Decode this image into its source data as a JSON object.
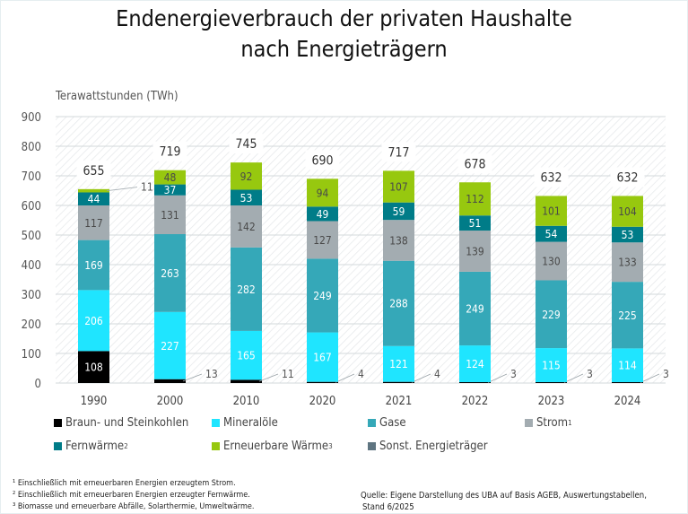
{
  "chart_data": {
    "type": "bar",
    "stacked": true,
    "title": "Endenergieverbrauch der privaten Haushalte nach Energieträgern",
    "title_lines": [
      "Endenergieverbrauch der privaten Haushalte",
      "nach Energieträgern"
    ],
    "ylabel": "Terawattstunden (TWh)",
    "xlabel": "",
    "ylim": [
      0,
      900
    ],
    "yticks": [
      0,
      100,
      200,
      300,
      400,
      500,
      600,
      700,
      800,
      900
    ],
    "grid": true,
    "legend_position": "bottom",
    "categories": [
      "1990",
      "2000",
      "2010",
      "2020",
      "2021",
      "2022",
      "2023",
      "2024"
    ],
    "totals": [
      655,
      719,
      745,
      690,
      717,
      678,
      632,
      632
    ],
    "series": [
      {
        "name": "Braun- und Steinkohlen",
        "sup": "",
        "color": "#000000",
        "label_color": "#ffffff",
        "values": [
          108,
          13,
          11,
          4,
          4,
          3,
          3,
          3
        ]
      },
      {
        "name": "Mineralöle",
        "sup": "",
        "color": "#1fe5ff",
        "label_color": "#ffffff",
        "values": [
          206,
          227,
          165,
          167,
          121,
          124,
          115,
          114
        ]
      },
      {
        "name": "Gase",
        "sup": "",
        "color": "#35a8b8",
        "label_color": "#ffffff",
        "values": [
          169,
          263,
          282,
          249,
          288,
          249,
          229,
          225
        ]
      },
      {
        "name": "Strom",
        "sup": "1",
        "color": "#a3acb1",
        "label_color": "#4a4a4a",
        "values": [
          117,
          131,
          142,
          127,
          138,
          139,
          130,
          133
        ]
      },
      {
        "name": "Fernwärme",
        "sup": "2",
        "color": "#007c88",
        "label_color": "#ffffff",
        "values": [
          44,
          37,
          53,
          49,
          59,
          51,
          54,
          53
        ]
      },
      {
        "name": "Erneuerbare Wärme",
        "sup": "3",
        "color": "#97c80f",
        "label_color": "#4a4a4a",
        "values": [
          11,
          48,
          92,
          94,
          107,
          112,
          101,
          104
        ]
      },
      {
        "name": "Sonst. Energieträger",
        "sup": "",
        "color": "#5f7581",
        "label_color": "#ffffff",
        "values": [
          0,
          0,
          0,
          0,
          0,
          0,
          0,
          0
        ]
      }
    ]
  },
  "footnotes": [
    "¹ Einschließlich mit erneuerbaren Energien erzeugtem Strom.",
    "² Einschließlich mit erneuerbaren Energien erzeugter Fernwärme.",
    "³ Biomasse und erneuerbare Abfälle, Solarthermie, Umweltwärme."
  ],
  "source": [
    "Quelle: Eigene Darstellung des UBA auf Basis AGEB, Auswertungstabellen,",
    "Stand 6/2025"
  ]
}
